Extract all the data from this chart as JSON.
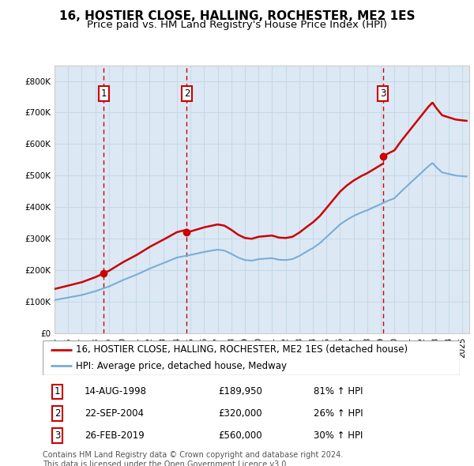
{
  "title": "16, HOSTIER CLOSE, HALLING, ROCHESTER, ME2 1ES",
  "subtitle": "Price paid vs. HM Land Registry's House Price Index (HPI)",
  "ylim": [
    0,
    850000
  ],
  "xlim_start": 1995.0,
  "xlim_end": 2025.5,
  "sale_dates": [
    1998.617,
    2004.728,
    2019.155
  ],
  "sale_prices": [
    189950,
    320000,
    560000
  ],
  "sale_labels": [
    "1",
    "2",
    "3"
  ],
  "sale_annotations": [
    "14-AUG-1998",
    "22-SEP-2004",
    "26-FEB-2019"
  ],
  "sale_amounts": [
    "£189,950",
    "£320,000",
    "£560,000"
  ],
  "sale_pcts": [
    "81% ↑ HPI",
    "26% ↑ HPI",
    "30% ↑ HPI"
  ],
  "property_line_color": "#cc0000",
  "hpi_line_color": "#7aadd4",
  "vline_color": "#cc0000",
  "background_color": "#dce9f5",
  "grid_color": "#c8d8e8",
  "legend_label_property": "16, HOSTIER CLOSE, HALLING, ROCHESTER, ME2 1ES (detached house)",
  "legend_label_hpi": "HPI: Average price, detached house, Medway",
  "footer": "Contains HM Land Registry data © Crown copyright and database right 2024.\nThis data is licensed under the Open Government Licence v3.0.",
  "title_fontsize": 11,
  "subtitle_fontsize": 9.5,
  "tick_fontsize": 7.5,
  "legend_fontsize": 8.5,
  "table_fontsize": 8.5,
  "footer_fontsize": 7
}
